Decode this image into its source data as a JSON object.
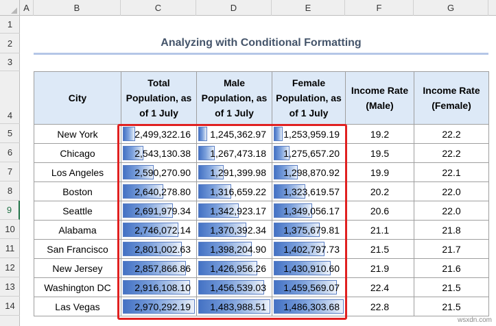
{
  "columns": [
    "A",
    "B",
    "C",
    "D",
    "E",
    "F",
    "G"
  ],
  "rows": [
    "1",
    "2",
    "3",
    "4",
    "5",
    "6",
    "7",
    "8",
    "9",
    "10",
    "11",
    "12",
    "13",
    "14"
  ],
  "selected_row": "9",
  "title": "Analyzing with Conditional Formatting",
  "headers": {
    "city": "City",
    "total": "Total Population, as of 1 July",
    "male": "Male Population, as of 1 July",
    "female": "Female Population, as of 1 July",
    "income_male": "Income Rate (Male)",
    "income_female": "Income Rate (Female)"
  },
  "table": [
    {
      "city": "New York",
      "total": "2,499,322.16",
      "male": "1,245,362.97",
      "female": "1,253,959.19",
      "income_male": "19.2",
      "income_female": "22.2"
    },
    {
      "city": "Chicago",
      "total": "2,543,130.38",
      "male": "1,267,473.18",
      "female": "1,275,657.20",
      "income_male": "19.5",
      "income_female": "22.2"
    },
    {
      "city": "Los Angeles",
      "total": "2,590,270.90",
      "male": "1,291,399.98",
      "female": "1,298,870.92",
      "income_male": "19.9",
      "income_female": "22.1"
    },
    {
      "city": "Boston",
      "total": "2,640,278.80",
      "male": "1,316,659.22",
      "female": "1,323,619.57",
      "income_male": "20.2",
      "income_female": "22.0"
    },
    {
      "city": "Seattle",
      "total": "2,691,979.34",
      "male": "1,342,923.17",
      "female": "1,349,056.17",
      "income_male": "20.6",
      "income_female": "22.0"
    },
    {
      "city": "Alabama",
      "total": "2,746,072.14",
      "male": "1,370,392.34",
      "female": "1,375,679.81",
      "income_male": "21.1",
      "income_female": "21.8"
    },
    {
      "city": "San Francisco",
      "total": "2,801,002.63",
      "male": "1,398,204.90",
      "female": "1,402,797.73",
      "income_male": "21.5",
      "income_female": "21.7"
    },
    {
      "city": "New Jersey",
      "total": "2,857,866.86",
      "male": "1,426,956.26",
      "female": "1,430,910.60",
      "income_male": "21.9",
      "income_female": "21.6"
    },
    {
      "city": "Washington DC",
      "total": "2,916,108.10",
      "male": "1,456,539.03",
      "female": "1,459,569.07",
      "income_male": "22.4",
      "income_female": "21.5"
    },
    {
      "city": "Las Vegas",
      "total": "2,970,292.19",
      "male": "1,483,988.51",
      "female": "1,486,303.68",
      "income_male": "22.8",
      "income_female": "21.5"
    }
  ],
  "data_bar_fill": {
    "total": [
      0.2,
      0.31,
      0.45,
      0.58,
      0.71,
      0.78,
      0.83,
      0.88,
      0.94,
      1.0
    ],
    "male": [
      0.16,
      0.26,
      0.38,
      0.48,
      0.58,
      0.68,
      0.75,
      0.83,
      0.92,
      1.0
    ],
    "female": [
      0.16,
      0.25,
      0.37,
      0.47,
      0.57,
      0.67,
      0.74,
      0.82,
      0.91,
      1.0
    ]
  },
  "colors": {
    "data_bar": "#4472c4",
    "highlight_box": "#e02020",
    "header_fill": "#dde9f7",
    "title_text": "#44546a"
  },
  "watermark": "wsxdn.com"
}
